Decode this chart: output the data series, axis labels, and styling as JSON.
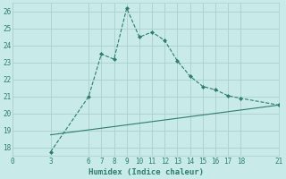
{
  "xlabel": "Humidex (Indice chaleur)",
  "xlim": [
    0,
    21
  ],
  "ylim": [
    17.5,
    26.5
  ],
  "xticks": [
    0,
    3,
    6,
    7,
    8,
    9,
    10,
    11,
    12,
    13,
    14,
    15,
    16,
    17,
    18,
    21
  ],
  "yticks": [
    18,
    19,
    20,
    21,
    22,
    23,
    24,
    25,
    26
  ],
  "line1_x": [
    3,
    6,
    7,
    8,
    9,
    10,
    11,
    12,
    13,
    14,
    15,
    16,
    17,
    18,
    21
  ],
  "line1_y": [
    17.75,
    21.0,
    23.5,
    23.2,
    26.2,
    24.5,
    24.8,
    24.3,
    23.1,
    22.2,
    21.6,
    21.4,
    21.05,
    20.9,
    20.5
  ],
  "line2_x": [
    3,
    21
  ],
  "line2_y": [
    18.75,
    20.5
  ],
  "line_color": "#2e7d6e",
  "bg_color": "#c8eae8",
  "grid_color": "#aacfcc",
  "font_color": "#2e7d6e",
  "tick_fontsize": 5.5,
  "xlabel_fontsize": 6.5
}
